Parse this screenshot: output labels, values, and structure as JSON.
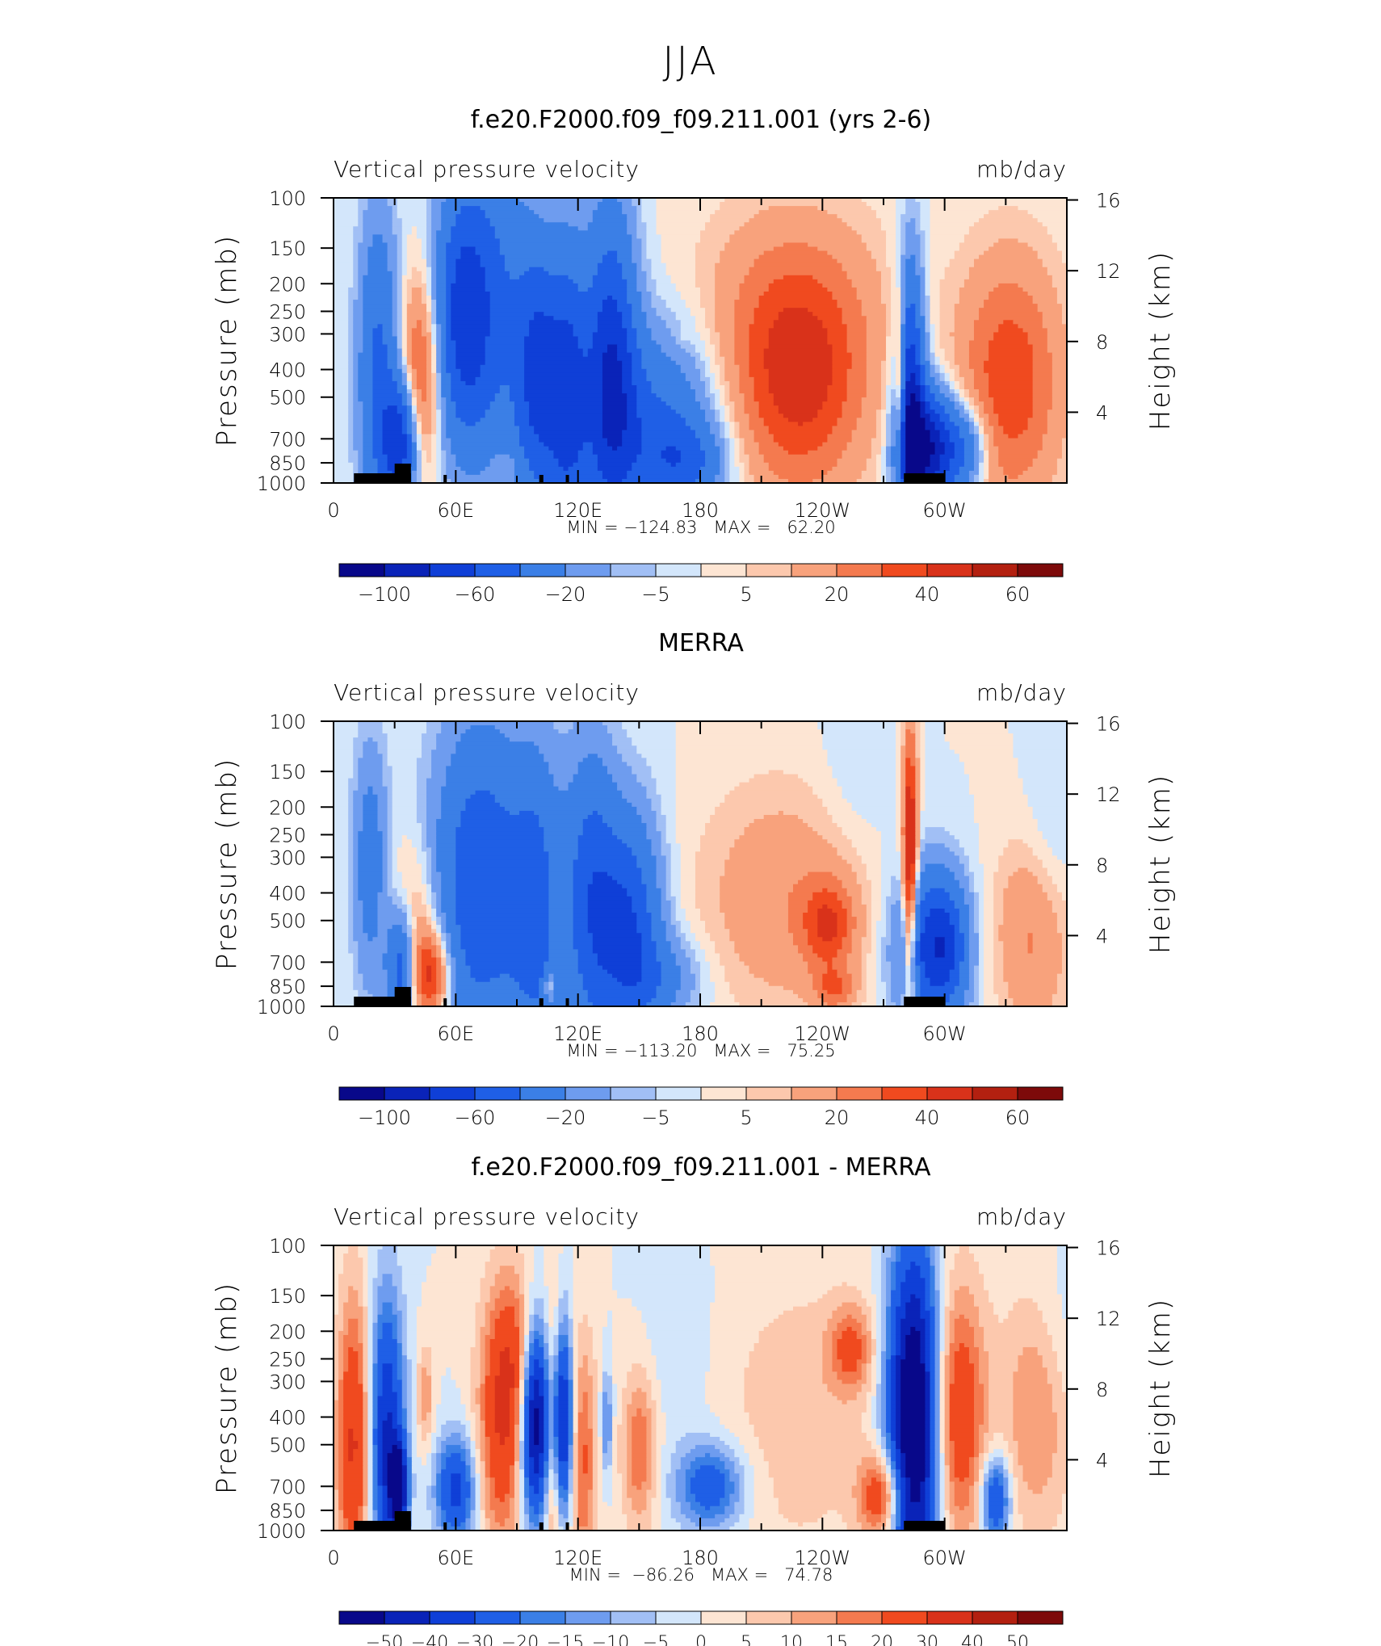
{
  "page": {
    "title": "JJA"
  },
  "chart_data": [
    {
      "type": "heatmap",
      "title": "f.e20.F2000.f09_f09.211.001 (yrs 2-6)",
      "left_string": "Vertical pressure velocity",
      "right_string": "mb/day",
      "ylabel": "Pressure (mb)",
      "ylabel_right": "Height (km)",
      "x_ticks": [
        "0",
        "60E",
        "120E",
        "180",
        "120W",
        "60W"
      ],
      "y_ticks": [
        "100",
        "150",
        "200",
        "250",
        "300",
        "400",
        "500",
        "700",
        "850",
        "1000"
      ],
      "y_ticks_right": [
        "16",
        "12",
        "8",
        "4"
      ],
      "xlim": [
        0,
        360
      ],
      "ylim": [
        1000,
        100
      ],
      "y_scale": "log",
      "min_max_label": "MIN = −124.83   MAX =   62.20",
      "min": -124.83,
      "max": 62.2,
      "colorbar": {
        "levels": [
          -120,
          -100,
          -80,
          -60,
          -40,
          -20,
          -10,
          -5,
          0,
          5,
          10,
          20,
          30,
          40,
          50,
          60,
          80
        ],
        "labels": [
          "−100",
          "−60",
          "−20",
          "−5",
          "5",
          "20",
          "40",
          "60"
        ]
      },
      "features": [
        {
          "lon": 22,
          "p": 420,
          "w_lon": 7,
          "w_p": 0.9,
          "value": -45
        },
        {
          "lon": 33,
          "p": 720,
          "w_lon": 6,
          "w_p": 0.35,
          "value": -70
        },
        {
          "lon": 43,
          "p": 420,
          "w_lon": 7,
          "w_p": 0.55,
          "value": 38
        },
        {
          "lon": 64,
          "p": 260,
          "w_lon": 10,
          "w_p": 0.75,
          "value": -72
        },
        {
          "lon": 82,
          "p": 240,
          "w_lon": 10,
          "w_p": 1.0,
          "value": -30
        },
        {
          "lon": 100,
          "p": 420,
          "w_lon": 8,
          "w_p": 0.75,
          "value": -62
        },
        {
          "lon": 115,
          "p": 500,
          "w_lon": 7,
          "w_p": 0.85,
          "value": -58
        },
        {
          "lon": 136,
          "p": 400,
          "w_lon": 9,
          "w_p": 0.9,
          "value": -70
        },
        {
          "lon": 158,
          "p": 640,
          "w_lon": 22,
          "w_p": 0.55,
          "value": -42
        },
        {
          "lon": 172,
          "p": 840,
          "w_lon": 14,
          "w_p": 0.22,
          "value": -30
        },
        {
          "lon": 86,
          "p": 890,
          "w_lon": 5,
          "w_p": 0.1,
          "value": 8
        },
        {
          "lon": 172,
          "p": 310,
          "w_lon": 4,
          "w_p": 0.05,
          "value": 4
        },
        {
          "lon": 228,
          "p": 450,
          "w_lon": 24,
          "w_p": 0.65,
          "value": 42
        },
        {
          "lon": 225,
          "p": 220,
          "w_lon": 35,
          "w_p": 0.6,
          "value": 14
        },
        {
          "lon": 283,
          "p": 560,
          "w_lon": 5,
          "w_p": 0.8,
          "value": -85
        },
        {
          "lon": 292,
          "p": 760,
          "w_lon": 9,
          "w_p": 0.32,
          "value": -95
        },
        {
          "lon": 310,
          "p": 760,
          "w_lon": 8,
          "w_p": 0.25,
          "value": -40
        },
        {
          "lon": 332,
          "p": 440,
          "w_lon": 18,
          "w_p": 0.7,
          "value": 38
        },
        {
          "lon": 278,
          "p": 520,
          "w_lon": 2,
          "w_p": 0.6,
          "value": 45
        }
      ]
    },
    {
      "type": "heatmap",
      "title": "MERRA",
      "left_string": "Vertical pressure velocity",
      "right_string": "mb/day",
      "ylabel": "Pressure (mb)",
      "ylabel_right": "Height (km)",
      "x_ticks": [
        "0",
        "60E",
        "120E",
        "180",
        "120W",
        "60W"
      ],
      "y_ticks": [
        "100",
        "150",
        "200",
        "250",
        "300",
        "400",
        "500",
        "700",
        "850",
        "1000"
      ],
      "y_ticks_right": [
        "16",
        "12",
        "8",
        "4"
      ],
      "xlim": [
        0,
        360
      ],
      "ylim": [
        1000,
        100
      ],
      "y_scale": "log",
      "min_max_label": "MIN = −113.20   MAX =   75.25",
      "min": -113.2,
      "max": 75.25,
      "colorbar": {
        "levels": [
          -120,
          -100,
          -80,
          -60,
          -40,
          -20,
          -10,
          -5,
          0,
          5,
          10,
          20,
          30,
          40,
          50,
          60,
          80
        ],
        "labels": [
          "−100",
          "−60",
          "−20",
          "−5",
          "5",
          "20",
          "40",
          "60"
        ]
      },
      "features": [
        {
          "lon": 18,
          "p": 320,
          "w_lon": 6,
          "w_p": 0.7,
          "value": -30
        },
        {
          "lon": 33,
          "p": 740,
          "w_lon": 5,
          "w_p": 0.35,
          "value": -55
        },
        {
          "lon": 40,
          "p": 520,
          "w_lon": 9,
          "w_p": 0.45,
          "value": 20
        },
        {
          "lon": 48,
          "p": 780,
          "w_lon": 7,
          "w_p": 0.25,
          "value": 45
        },
        {
          "lon": 72,
          "p": 380,
          "w_lon": 16,
          "w_p": 0.9,
          "value": -58
        },
        {
          "lon": 100,
          "p": 470,
          "w_lon": 9,
          "w_p": 0.9,
          "value": -42
        },
        {
          "lon": 108,
          "p": 400,
          "w_lon": 2,
          "w_p": 0.35,
          "value": 12
        },
        {
          "lon": 106,
          "p": 850,
          "w_lon": 2,
          "w_p": 0.1,
          "value": 25
        },
        {
          "lon": 126,
          "p": 420,
          "w_lon": 9,
          "w_p": 0.85,
          "value": -48
        },
        {
          "lon": 145,
          "p": 540,
          "w_lon": 11,
          "w_p": 0.65,
          "value": -60
        },
        {
          "lon": 162,
          "p": 800,
          "w_lon": 14,
          "w_p": 0.25,
          "value": -22
        },
        {
          "lon": 222,
          "p": 420,
          "w_lon": 30,
          "w_p": 0.65,
          "value": 18
        },
        {
          "lon": 243,
          "p": 520,
          "w_lon": 9,
          "w_p": 0.25,
          "value": 32
        },
        {
          "lon": 246,
          "p": 870,
          "w_lon": 7,
          "w_p": 0.12,
          "value": 24
        },
        {
          "lon": 283,
          "p": 330,
          "w_lon": 2.5,
          "w_p": 0.8,
          "value": 62
        },
        {
          "lon": 292,
          "p": 620,
          "w_lon": 12,
          "w_p": 0.45,
          "value": -52
        },
        {
          "lon": 300,
          "p": 620,
          "w_lon": 8,
          "w_p": 0.35,
          "value": -38
        },
        {
          "lon": 343,
          "p": 560,
          "w_lon": 13,
          "w_p": 0.55,
          "value": 22
        },
        {
          "lon": 352,
          "p": 280,
          "w_lon": 10,
          "w_p": 0.5,
          "value": -8
        },
        {
          "lon": 258,
          "p": 160,
          "w_lon": 14,
          "w_p": 0.5,
          "value": -6
        }
      ]
    },
    {
      "type": "heatmap",
      "title": "f.e20.F2000.f09_f09.211.001 - MERRA",
      "left_string": "Vertical pressure velocity",
      "right_string": "mb/day",
      "ylabel": "Pressure (mb)",
      "ylabel_right": "Height (km)",
      "x_ticks": [
        "0",
        "60E",
        "120E",
        "180",
        "120W",
        "60W"
      ],
      "y_ticks": [
        "100",
        "150",
        "200",
        "250",
        "300",
        "400",
        "500",
        "700",
        "850",
        "1000"
      ],
      "y_ticks_right": [
        "16",
        "12",
        "8",
        "4"
      ],
      "xlim": [
        0,
        360
      ],
      "ylim": [
        1000,
        100
      ],
      "y_scale": "log",
      "min_max_label": "MIN =  −86.26   MAX =   74.78",
      "min": -86.26,
      "max": 74.78,
      "colorbar": {
        "levels": [
          -60,
          -50,
          -40,
          -30,
          -20,
          -15,
          -10,
          -5,
          0,
          5,
          10,
          15,
          20,
          30,
          40,
          50,
          60
        ],
        "labels": [
          "−50",
          "−40",
          "−30",
          "−20",
          "−15",
          "−10",
          "−5",
          "0",
          "5",
          "10",
          "15",
          "20",
          "30",
          "40",
          "50"
        ]
      },
      "features": [
        {
          "lon": 10,
          "p": 500,
          "w_lon": 6,
          "w_p": 0.85,
          "value": 32
        },
        {
          "lon": 26,
          "p": 480,
          "w_lon": 6,
          "w_p": 0.8,
          "value": -42
        },
        {
          "lon": 32,
          "p": 700,
          "w_lon": 3,
          "w_p": 0.25,
          "value": -52
        },
        {
          "lon": 45,
          "p": 340,
          "w_lon": 3,
          "w_p": 0.3,
          "value": 14
        },
        {
          "lon": 60,
          "p": 720,
          "w_lon": 7,
          "w_p": 0.3,
          "value": -34
        },
        {
          "lon": 82,
          "p": 420,
          "w_lon": 8,
          "w_p": 0.75,
          "value": 28
        },
        {
          "lon": 92,
          "p": 250,
          "w_lon": 8,
          "w_p": 0.5,
          "value": 18
        },
        {
          "lon": 99,
          "p": 400,
          "w_lon": 5,
          "w_p": 0.55,
          "value": -62
        },
        {
          "lon": 112,
          "p": 420,
          "w_lon": 4,
          "w_p": 0.55,
          "value": -52
        },
        {
          "lon": 108,
          "p": 500,
          "w_lon": 3,
          "w_p": 0.8,
          "value": 28
        },
        {
          "lon": 122,
          "p": 560,
          "w_lon": 5,
          "w_p": 0.7,
          "value": 22
        },
        {
          "lon": 134,
          "p": 420,
          "w_lon": 2,
          "w_p": 0.3,
          "value": -18
        },
        {
          "lon": 150,
          "p": 520,
          "w_lon": 6,
          "w_p": 0.45,
          "value": 20
        },
        {
          "lon": 185,
          "p": 700,
          "w_lon": 12,
          "w_p": 0.25,
          "value": -28
        },
        {
          "lon": 170,
          "p": 220,
          "w_lon": 12,
          "w_p": 0.6,
          "value": -5
        },
        {
          "lon": 228,
          "p": 400,
          "w_lon": 30,
          "w_p": 0.9,
          "value": 8
        },
        {
          "lon": 254,
          "p": 230,
          "w_lon": 8,
          "w_p": 0.25,
          "value": 20
        },
        {
          "lon": 270,
          "p": 760,
          "w_lon": 8,
          "w_p": 0.25,
          "value": 32
        },
        {
          "lon": 285,
          "p": 420,
          "w_lon": 9,
          "w_p": 1.0,
          "value": -72
        },
        {
          "lon": 306,
          "p": 390,
          "w_lon": 10,
          "w_p": 0.75,
          "value": 30
        },
        {
          "lon": 325,
          "p": 780,
          "w_lon": 5,
          "w_p": 0.25,
          "value": -34
        },
        {
          "lon": 345,
          "p": 380,
          "w_lon": 12,
          "w_p": 0.7,
          "value": 16
        },
        {
          "lon": 356,
          "p": 200,
          "w_lon": 10,
          "w_p": 0.5,
          "value": -5
        }
      ]
    }
  ]
}
